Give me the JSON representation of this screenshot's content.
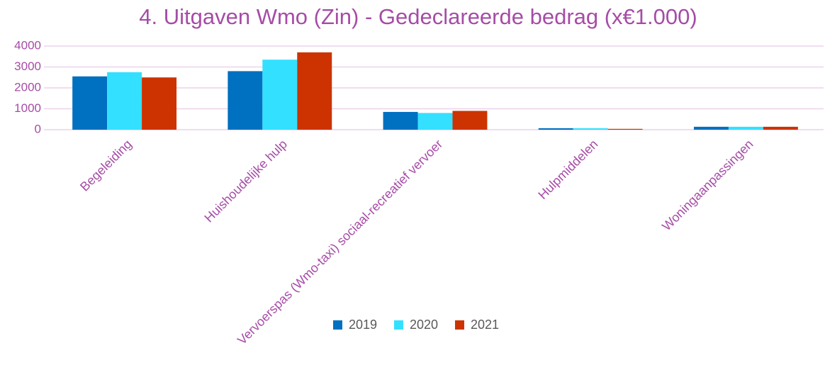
{
  "chart_data": {
    "type": "bar",
    "title": "4. Uitgaven Wmo (Zin) - Gedeclareerde bedrag (x€1.000)",
    "categories": [
      "Begeleiding",
      "Huishoudelijke hulp",
      "Vervoerspas (Wmo-taxi) sociaal-recreatief vervoer",
      "Hulpmiddelen",
      "Woningaanpassingen"
    ],
    "series": [
      {
        "name": "2019",
        "color": "#0070c0",
        "values": [
          2550,
          2800,
          850,
          70,
          140
        ]
      },
      {
        "name": "2020",
        "color": "#33e0ff",
        "values": [
          2750,
          3350,
          800,
          70,
          140
        ]
      },
      {
        "name": "2021",
        "color": "#cc3300",
        "values": [
          2500,
          3700,
          900,
          40,
          140
        ]
      }
    ],
    "ylim": [
      0,
      4000
    ],
    "yticks": [
      0,
      1000,
      2000,
      3000,
      4000
    ],
    "grid": true,
    "legend": "bottom"
  }
}
